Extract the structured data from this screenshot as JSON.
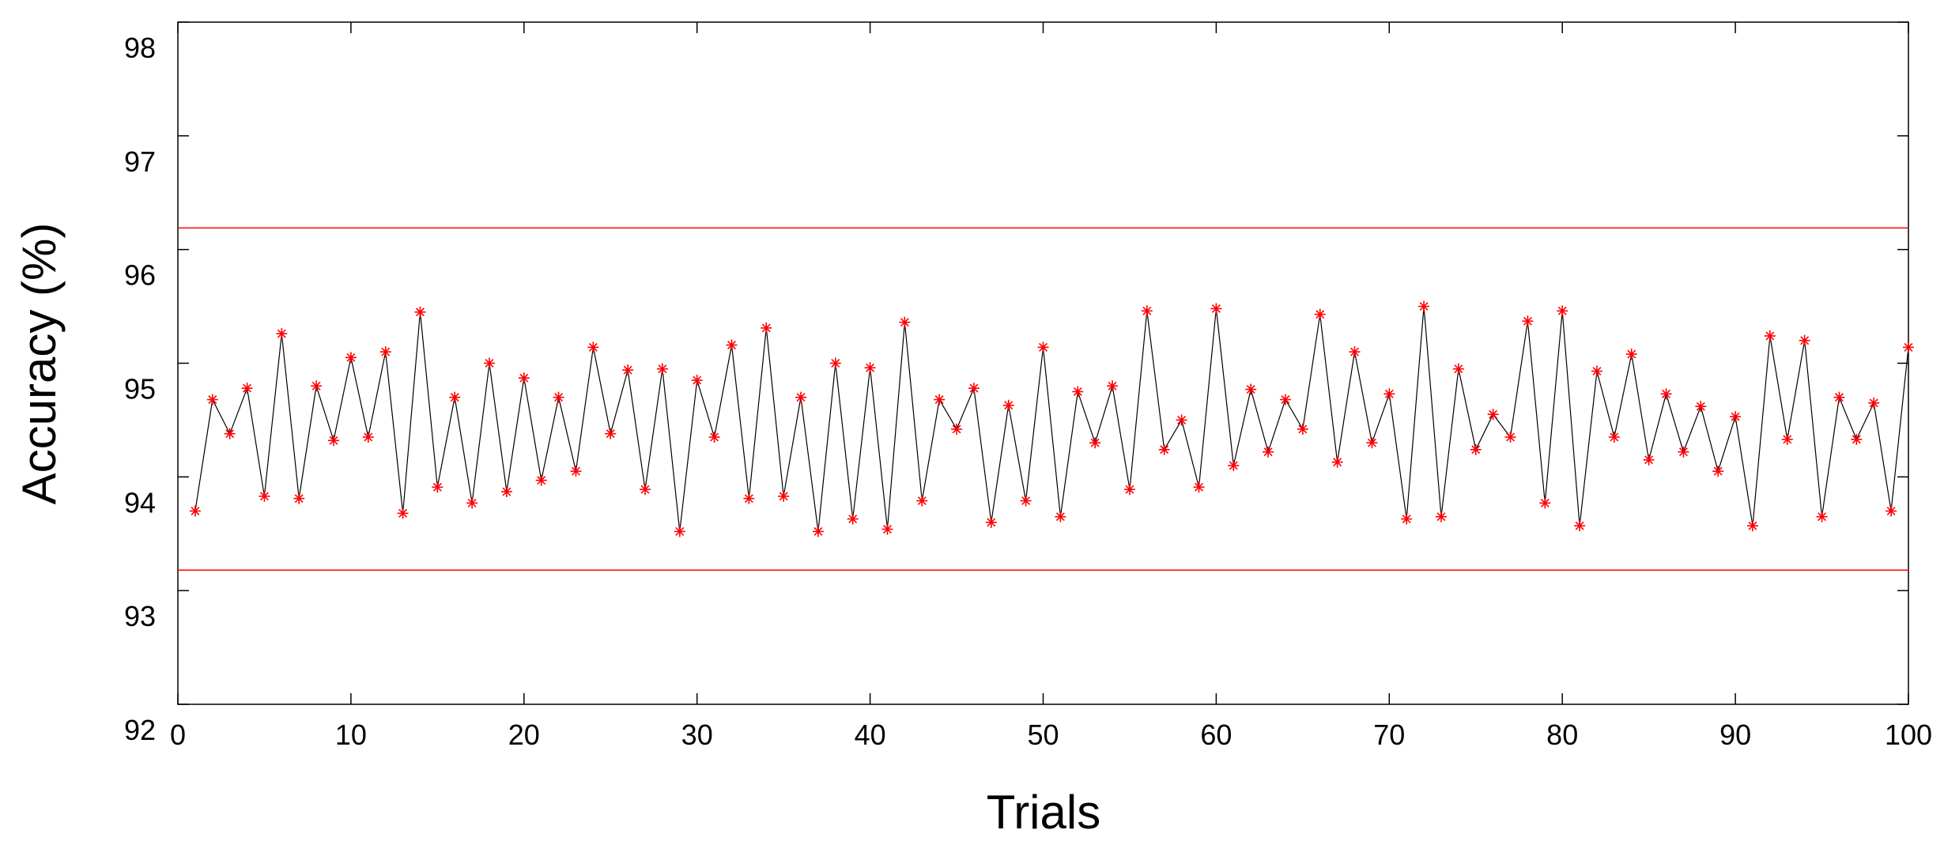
{
  "chart_data": {
    "type": "line",
    "xlabel": "Trials",
    "ylabel": "Accuracy (%)",
    "xlim": [
      0,
      100
    ],
    "ylim": [
      92,
      98
    ],
    "xticks": [
      "0",
      "10",
      "20",
      "30",
      "40",
      "50",
      "60",
      "70",
      "80",
      "90",
      "100"
    ],
    "yticks": [
      "92",
      "93",
      "94",
      "95",
      "96",
      "97",
      "98"
    ],
    "grid": false,
    "colors": {
      "line": "#000000",
      "marker": "#ff0000",
      "bounds": "#ff0000"
    },
    "marker": "asterisk",
    "bounds": [
      93.18,
      96.19
    ],
    "x": [
      1,
      2,
      3,
      4,
      5,
      6,
      7,
      8,
      9,
      10,
      11,
      12,
      13,
      14,
      15,
      16,
      17,
      18,
      19,
      20,
      21,
      22,
      23,
      24,
      25,
      26,
      27,
      28,
      29,
      30,
      31,
      32,
      33,
      34,
      35,
      36,
      37,
      38,
      39,
      40,
      41,
      42,
      43,
      44,
      45,
      46,
      47,
      48,
      49,
      50,
      51,
      52,
      53,
      54,
      55,
      56,
      57,
      58,
      59,
      60,
      61,
      62,
      63,
      64,
      65,
      66,
      67,
      68,
      69,
      70,
      71,
      72,
      73,
      74,
      75,
      76,
      77,
      78,
      79,
      80,
      81,
      82,
      83,
      84,
      85,
      86,
      87,
      88,
      89,
      90,
      91,
      92,
      93,
      94,
      95,
      96,
      97,
      98,
      99,
      100
    ],
    "series": [
      {
        "values": [
          93.7,
          94.68,
          94.38,
          94.78,
          93.83,
          95.26,
          93.81,
          94.8,
          94.32,
          95.05,
          94.35,
          95.1,
          93.68,
          95.45,
          93.91,
          94.7,
          93.77,
          95.0,
          93.87,
          94.87,
          93.97,
          94.7,
          94.05,
          95.14,
          94.38,
          94.94,
          93.89,
          94.95,
          93.52,
          94.85,
          94.35,
          95.16,
          93.81,
          95.31,
          93.83,
          94.7,
          93.52,
          95.0,
          93.63,
          94.96,
          93.54,
          95.36,
          93.79,
          94.68,
          94.42,
          94.78,
          93.6,
          94.63,
          93.79,
          95.14,
          93.65,
          94.75,
          94.3,
          94.8,
          93.89,
          95.46,
          94.24,
          94.5,
          93.91,
          95.48,
          94.1,
          94.77,
          94.22,
          94.68,
          94.42,
          95.43,
          94.13,
          95.1,
          94.3,
          94.73,
          93.63,
          95.5,
          93.65,
          94.95,
          94.24,
          94.55,
          94.35,
          95.37,
          93.77,
          95.46,
          93.57,
          94.93,
          94.35,
          95.08,
          94.15,
          94.73,
          94.22,
          94.62,
          94.05,
          94.53,
          93.57,
          95.24,
          94.33,
          95.2,
          93.65,
          94.7,
          94.33,
          94.65,
          93.7,
          95.14
        ]
      }
    ]
  }
}
